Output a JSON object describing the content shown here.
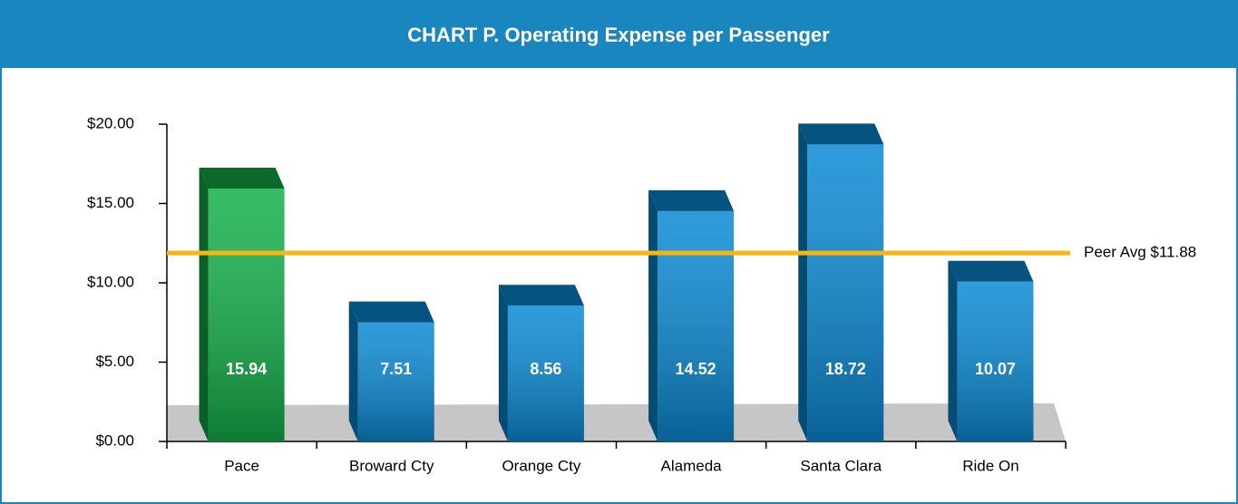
{
  "chart_data": {
    "type": "bar3d",
    "title": "CHART P.  Operating Expense per Passenger",
    "categories": [
      "Pace",
      "Broward Cty",
      "Orange Cty",
      "Alameda",
      "Santa Clara",
      "Ride On"
    ],
    "values": [
      15.94,
      7.51,
      8.56,
      14.52,
      18.72,
      10.07
    ],
    "colors": [
      "#14b04a",
      "#0a8ad4",
      "#0a8ad4",
      "#0a8ad4",
      "#0a8ad4",
      "#0a8ad4"
    ],
    "ylim": [
      0,
      20
    ],
    "yticks": [
      {
        "value": 0,
        "label": "$0.00"
      },
      {
        "value": 5,
        "label": "$5.00"
      },
      {
        "value": 10,
        "label": "$10.00"
      },
      {
        "value": 15,
        "label": "$15.00"
      },
      {
        "value": 20,
        "label": "$20.00"
      }
    ],
    "reference_line": {
      "value": 11.88,
      "label": "Peer Avg $11.88",
      "color": "#f7b614"
    }
  }
}
